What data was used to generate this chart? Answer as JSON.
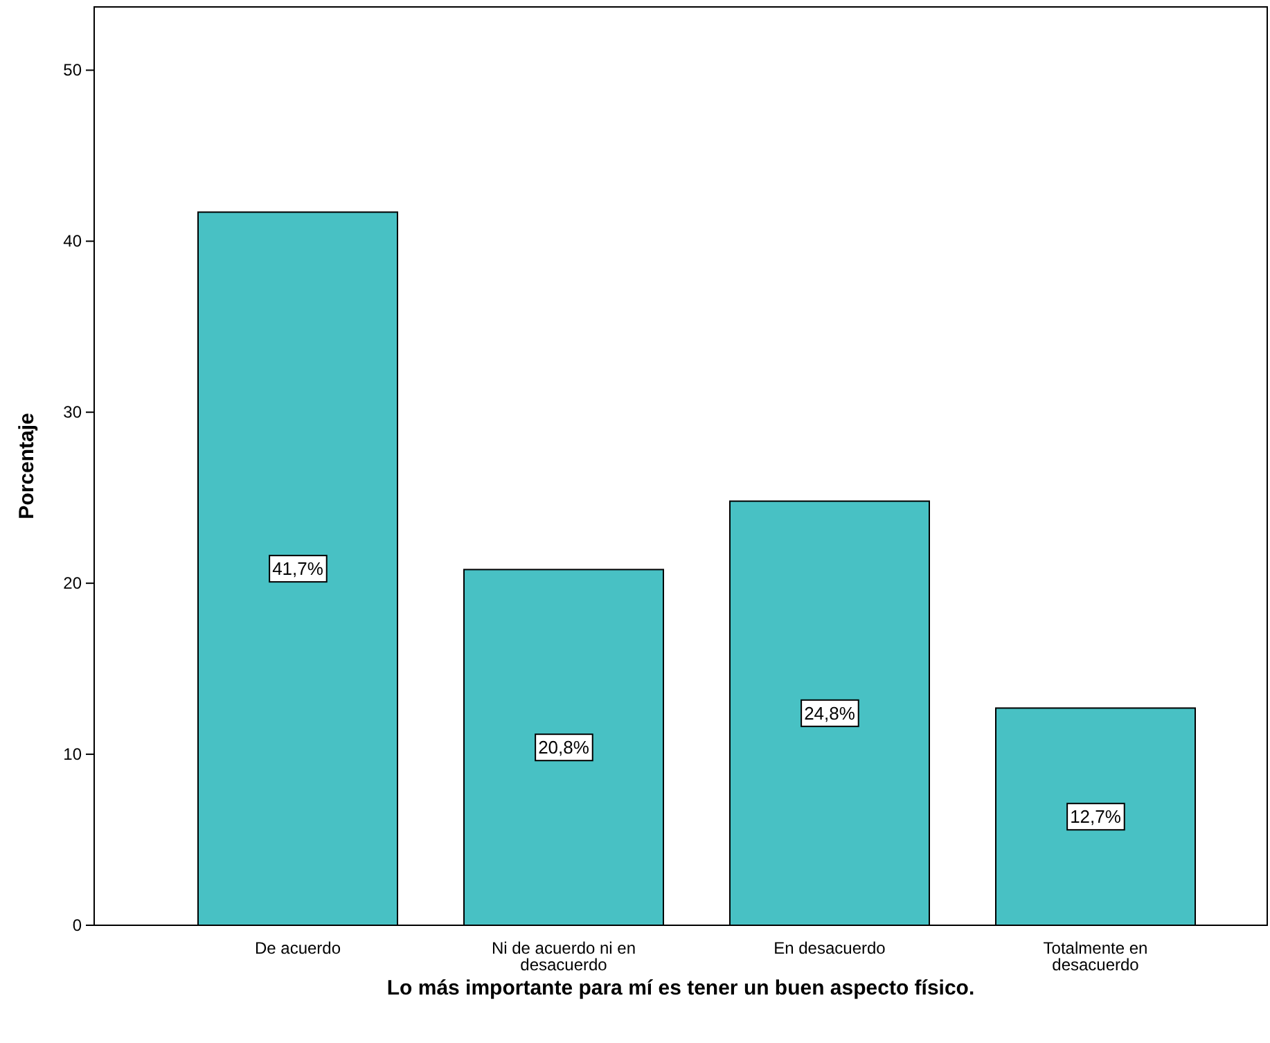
{
  "chart_data": {
    "type": "bar",
    "xlabel": "Lo más importante para mí es tener un buen aspecto físico.",
    "ylabel": "Porcentaje",
    "categories": [
      "De acuerdo",
      "Ni de acuerdo ni en desacuerdo",
      "En desacuerdo",
      "Totalmente en desacuerdo"
    ],
    "values": [
      41.7,
      20.8,
      24.8,
      12.7
    ],
    "value_labels": [
      "41,7%",
      "20,8%",
      "24,8%",
      "12,7%"
    ],
    "color": "#48c1c4",
    "ylim": [
      0,
      53.7
    ],
    "yticks": [
      0,
      10,
      20,
      30,
      40,
      50
    ],
    "grid": false
  }
}
